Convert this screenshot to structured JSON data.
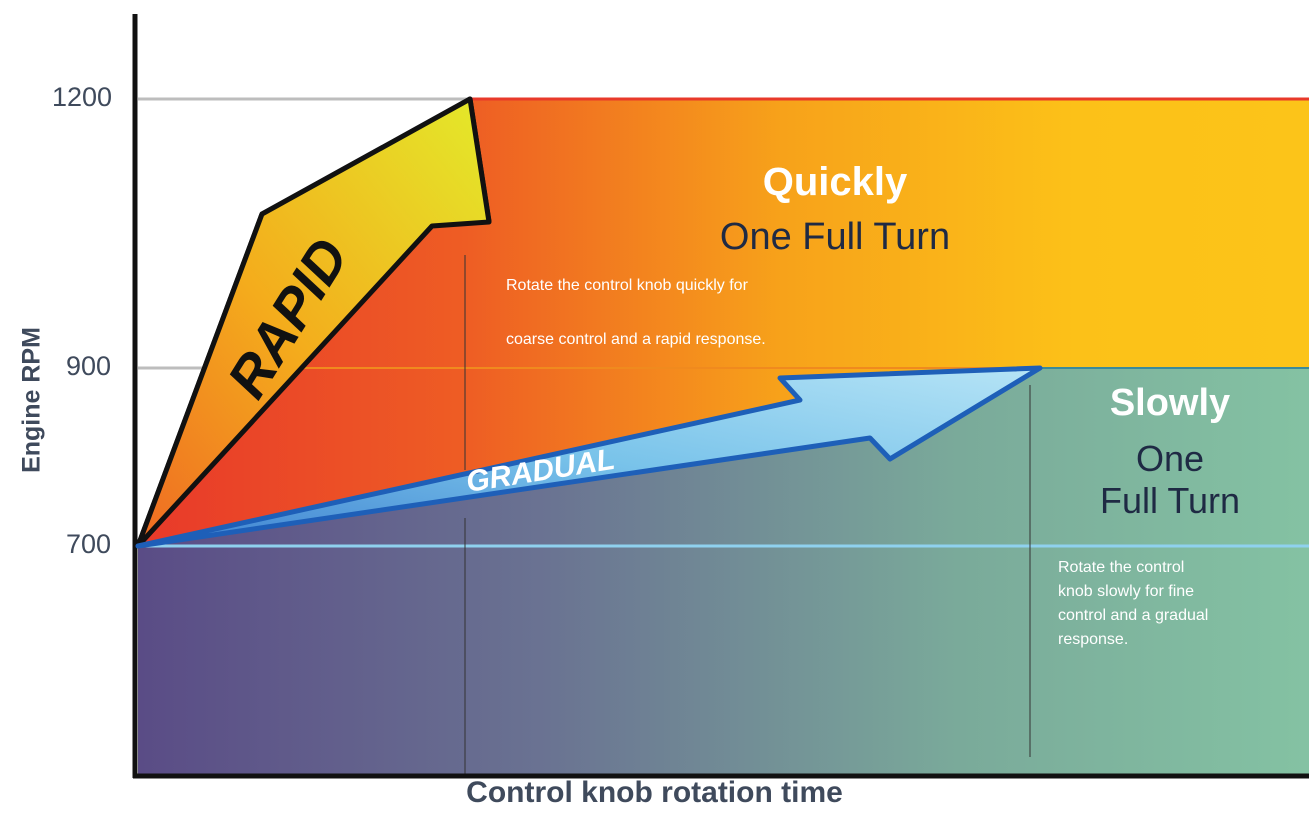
{
  "y_axis": {
    "label": "Engine RPM",
    "ticks": [
      "1200",
      "900",
      "700"
    ]
  },
  "x_axis": {
    "label": "Control knob rotation time"
  },
  "quick_zone": {
    "title": "Quickly",
    "subtitle": "One Full Turn",
    "note_line1": "Rotate the control knob quickly for",
    "note_line2": "coarse control and a rapid response."
  },
  "slow_zone": {
    "title": "Slowly",
    "subtitle_line1": "One",
    "subtitle_line2": "Full Turn",
    "note_lines": [
      "Rotate the control",
      "knob slowly for fine",
      "control and a gradual",
      "response."
    ]
  },
  "arrows": {
    "rapid": "RAPID",
    "gradual": "GRADUAL"
  },
  "colors": {
    "red": "#e8392a",
    "orange": "#f39a1f",
    "yellow": "#fcc419",
    "purple": "#5a4f8a",
    "teal": "#7fc0a0",
    "axis": "#111111",
    "gridline": "#bdbdbd",
    "arrow_blue": "#1e5fb8",
    "arrow_light": "#8fd1ee"
  }
}
